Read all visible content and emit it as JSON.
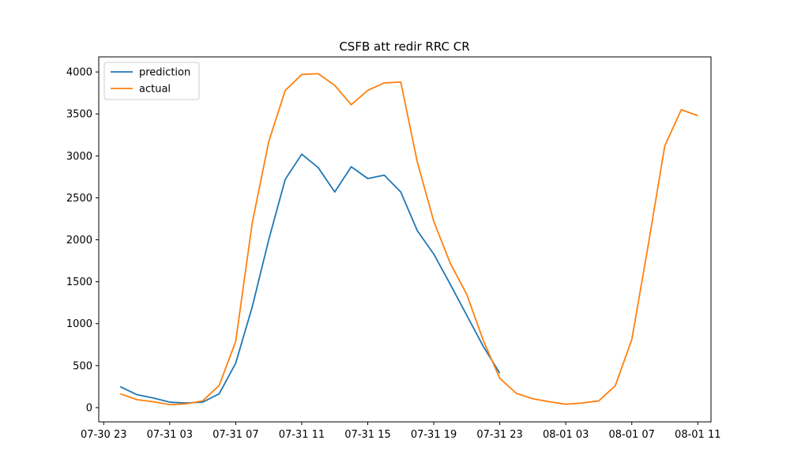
{
  "chart_data": {
    "type": "line",
    "title": "CSFB att redir RRC CR",
    "xlabel": "",
    "ylabel": "",
    "x": [
      "07-30 23",
      "07-31 00",
      "07-31 01",
      "07-31 02",
      "07-31 03",
      "07-31 04",
      "07-31 05",
      "07-31 06",
      "07-31 07",
      "07-31 08",
      "07-31 09",
      "07-31 10",
      "07-31 11",
      "07-31 12",
      "07-31 13",
      "07-31 14",
      "07-31 15",
      "07-31 16",
      "07-31 17",
      "07-31 18",
      "07-31 19",
      "07-31 20",
      "07-31 21",
      "07-31 22",
      "07-31 23",
      "08-01 00",
      "08-01 01",
      "08-01 02",
      "08-01 03",
      "08-01 04",
      "08-01 05",
      "08-01 06",
      "08-01 07",
      "08-01 08",
      "08-01 09",
      "08-01 10",
      "08-01 11"
    ],
    "x_ticks": [
      "07-30 23",
      "07-31 03",
      "07-31 07",
      "07-31 11",
      "07-31 15",
      "07-31 19",
      "07-31 23",
      "08-01 03",
      "08-01 07",
      "08-01 11"
    ],
    "y_ticks": [
      0,
      500,
      1000,
      1500,
      2000,
      2500,
      3000,
      3500,
      4000
    ],
    "xlim": [
      "07-30 22.7",
      "08-01 11.8"
    ],
    "ylim": [
      -170,
      4180
    ],
    "series": [
      {
        "name": "prediction",
        "color": "#1f77b4",
        "values": [
          null,
          250,
          155,
          115,
          65,
          55,
          65,
          165,
          530,
          1200,
          2000,
          2720,
          3020,
          2860,
          2570,
          2870,
          2730,
          2770,
          2570,
          2110,
          1830,
          1470,
          1100,
          730,
          410,
          null,
          null,
          null,
          null,
          null,
          null,
          null,
          null,
          null,
          null,
          null,
          null
        ]
      },
      {
        "name": "actual",
        "color": "#ff7f0e",
        "values": [
          null,
          165,
          95,
          70,
          35,
          45,
          80,
          265,
          790,
          2200,
          3170,
          3780,
          3970,
          3980,
          3840,
          3610,
          3780,
          3870,
          3880,
          2930,
          2220,
          1720,
          1350,
          800,
          350,
          170,
          105,
          70,
          40,
          55,
          80,
          260,
          810,
          1940,
          3120,
          3550,
          3480
        ]
      }
    ],
    "legend": {
      "position": "top-left",
      "entries": [
        "prediction",
        "actual"
      ]
    },
    "grid": false
  }
}
